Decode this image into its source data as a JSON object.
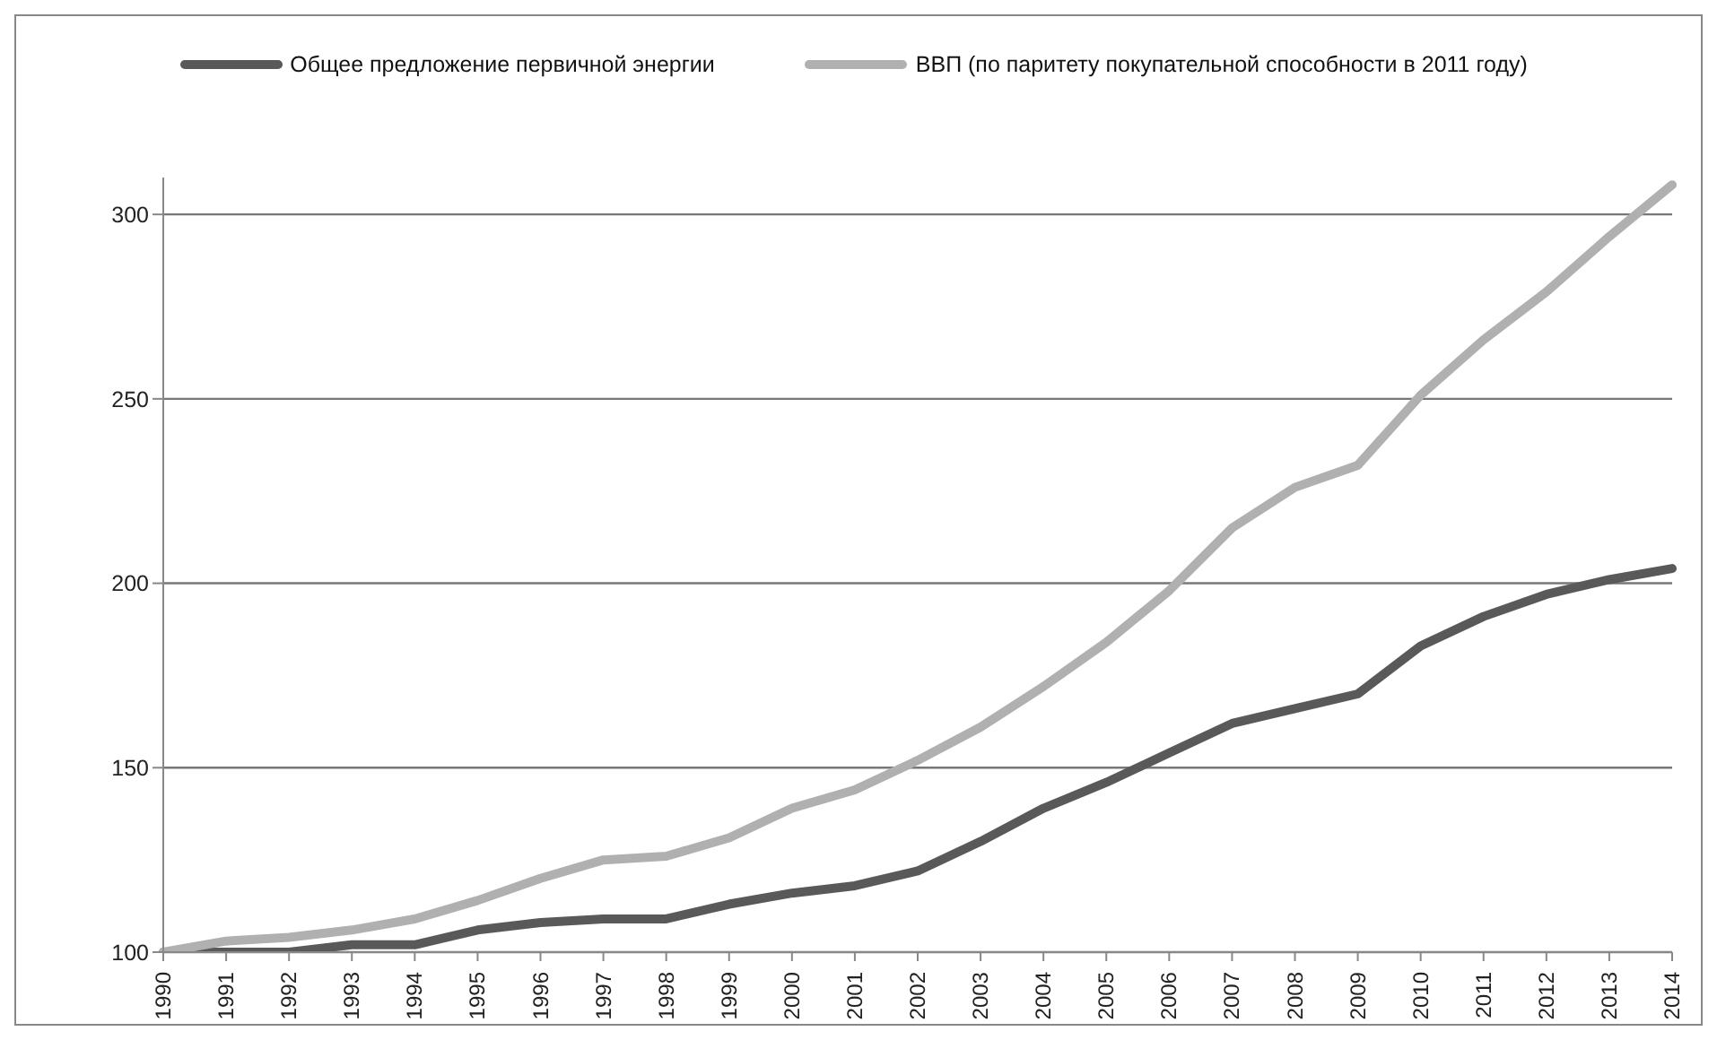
{
  "chart_data": {
    "type": "line",
    "categories": [
      "1990",
      "1991",
      "1992",
      "1993",
      "1994",
      "1995",
      "1996",
      "1997",
      "1998",
      "1999",
      "2000",
      "2001",
      "2002",
      "2003",
      "2004",
      "2005",
      "2006",
      "2007",
      "2008",
      "2009",
      "2010",
      "2011",
      "2012",
      "2013",
      "2014"
    ],
    "series": [
      {
        "name": "Общее предложение первичной энергии",
        "color": "#595959",
        "values": [
          100,
          100,
          100,
          102,
          102,
          106,
          108,
          109,
          109,
          113,
          116,
          118,
          122,
          130,
          139,
          146,
          154,
          162,
          166,
          170,
          183,
          191,
          197,
          201,
          204
        ]
      },
      {
        "name": "ВВП (по паритету покупательной способности в 2011 году)",
        "color": "#b0b0b0",
        "values": [
          100,
          103,
          104,
          106,
          109,
          114,
          120,
          125,
          126,
          131,
          139,
          144,
          152,
          161,
          172,
          184,
          198,
          215,
          226,
          232,
          251,
          266,
          279,
          294,
          308
        ]
      }
    ],
    "ylim": [
      100,
      310
    ],
    "yticks": [
      100,
      150,
      200,
      250,
      300
    ],
    "grid": "y",
    "legend": "top",
    "marker": "none",
    "line_style": "solid"
  }
}
